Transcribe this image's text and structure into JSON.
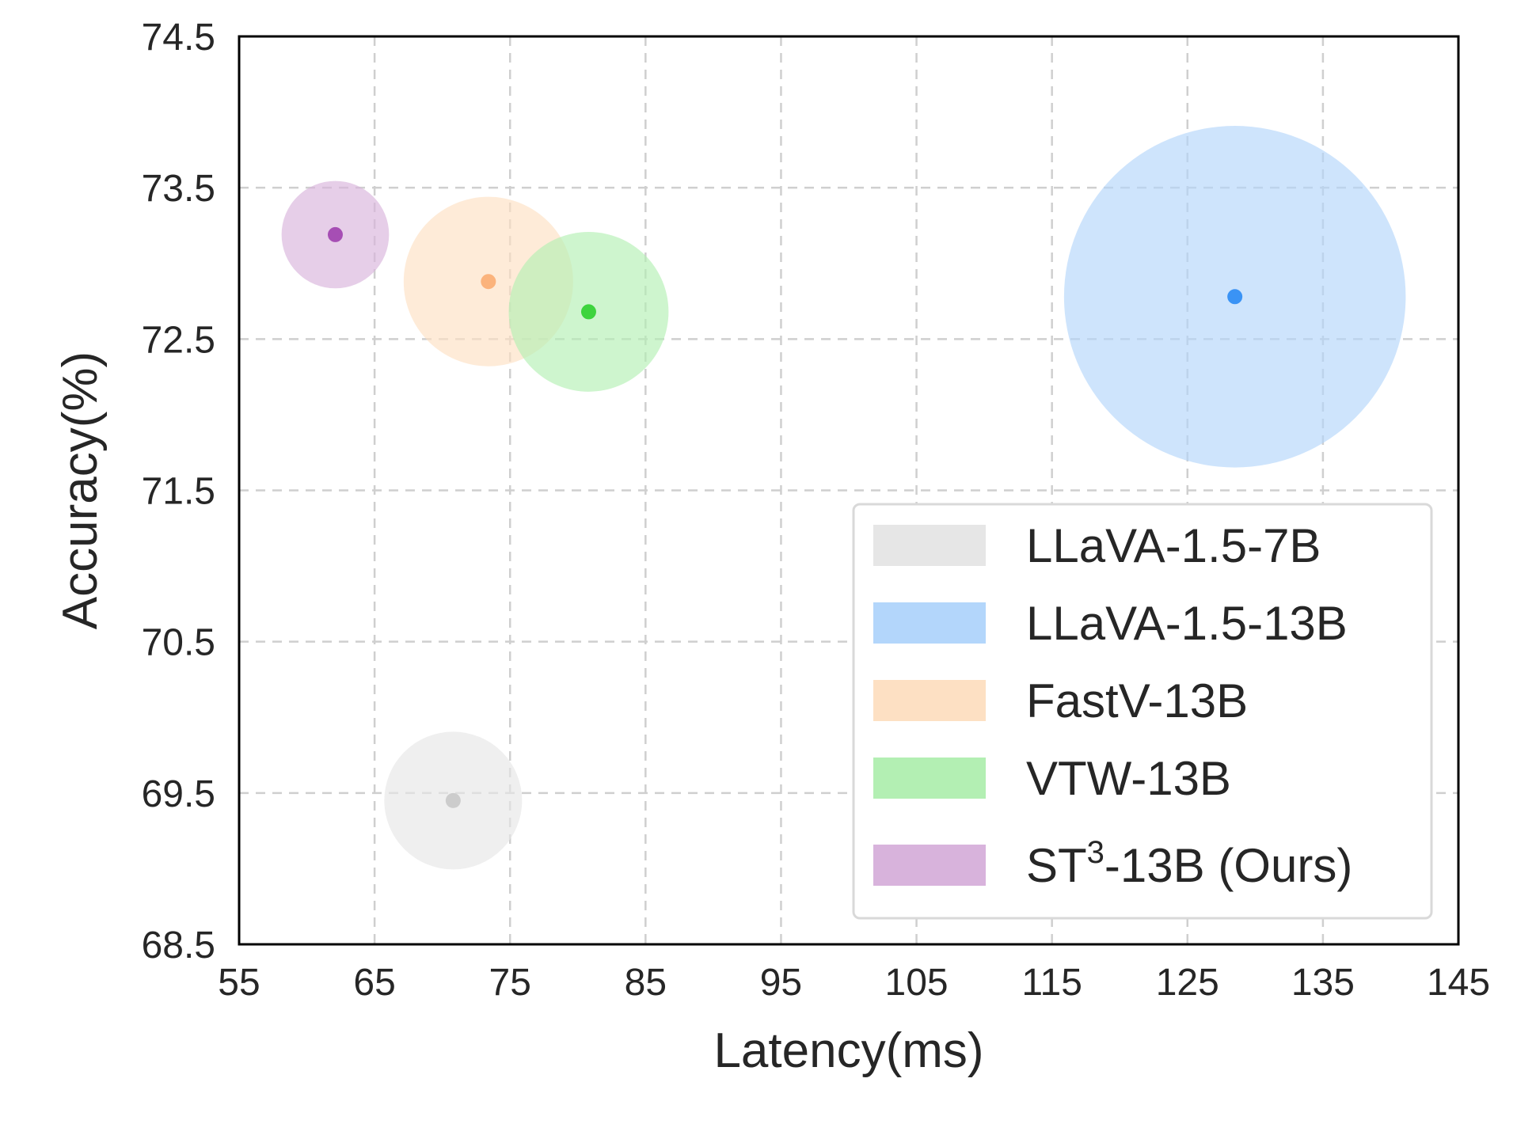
{
  "chart_data": {
    "type": "scatter",
    "xlabel": "Latency(ms)",
    "ylabel": "Accuracy(%)",
    "xlim": [
      55,
      145
    ],
    "ylim": [
      68.5,
      74.5
    ],
    "xticks": [
      "55",
      "65",
      "75",
      "85",
      "95",
      "105",
      "115",
      "125",
      "135",
      "145"
    ],
    "yticks": [
      "68.5",
      "69.5",
      "70.5",
      "71.5",
      "72.5",
      "73.5",
      "74.5"
    ],
    "grid": true,
    "legend_position": "bottom-right",
    "series": [
      {
        "name": "LLaVA-1.5-7B",
        "name_base": "LLaVA-1.5-7B",
        "name_sup": "",
        "name_tail": "",
        "x": 70.8,
        "y": 69.45,
        "size": 1.0,
        "color": "#e6e6e6",
        "point_color": "#cccccc"
      },
      {
        "name": "LLaVA-1.5-13B",
        "name_base": "LLaVA-1.5-13B",
        "name_sup": "",
        "name_tail": "",
        "x": 128.5,
        "y": 72.78,
        "size": 2.48,
        "color": "#b3d6fb",
        "point_color": "#3a93f5"
      },
      {
        "name": "FastV-13B",
        "name_base": "FastV-13B",
        "name_sup": "",
        "name_tail": "",
        "x": 73.4,
        "y": 72.88,
        "size": 1.23,
        "color": "#fde0c3",
        "point_color": "#fbb37c"
      },
      {
        "name": "VTW-13B",
        "name_base": "VTW-13B",
        "name_sup": "",
        "name_tail": "",
        "x": 80.8,
        "y": 72.68,
        "size": 1.16,
        "color": "#b3efb3",
        "point_color": "#3dd43d"
      },
      {
        "name": "ST3-13B (Ours)",
        "name_base": "ST",
        "name_sup": "3",
        "name_tail": "-13B (Ours)",
        "x": 62.1,
        "y": 73.19,
        "size": 0.78,
        "color": "#d8b3dc",
        "point_color": "#a64eb4"
      }
    ]
  }
}
